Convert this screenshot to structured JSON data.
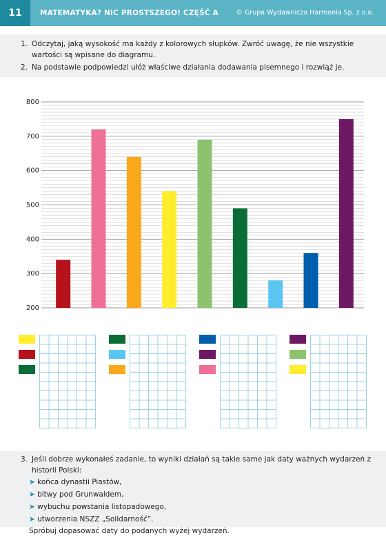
{
  "header": {
    "page_number": "11",
    "title": "MATEMATYKA? NIC PROSTSZEGO! CZĘŚĆ A",
    "copyright": "© Grupa Wydawnicza Harmonia Sp. z o.o."
  },
  "tasks": [
    {
      "number": "1.",
      "text": "Odczytaj, jaką wysokość ma każdy z kolorowych słupków. Zwróć uwagę, że nie wszystkie wartości są wpisane do diagramu."
    },
    {
      "number": "2.",
      "text": "Na podstawie podpowiedzi ułóż właściwe działania dodawania pisemnego i rozwiąż je."
    },
    {
      "number": "3.",
      "text": "Jeśli dobrze wykonałeś zadanie, to wyniki działań są takie same jak daty ważnych wydarzeń z historii Polski:",
      "items": [
        "końca dynastii Piastów,",
        "bitwy pod Grunwaldem,",
        "wybuchu powstania listopadowego,",
        "utworzenia NSZZ „Solidarność”."
      ],
      "closing": "Spróbuj dopasować daty do podanych wyżej wydarzeń."
    }
  ],
  "chart_data": {
    "type": "bar",
    "values": [
      340,
      720,
      640,
      540,
      690,
      490,
      280,
      360,
      750
    ],
    "colors": [
      "#b5121b",
      "#ef7096",
      "#f9a81a",
      "#ffed2e",
      "#8dc26f",
      "#0a6d38",
      "#5bc5f2",
      "#005eac",
      "#6d1863"
    ],
    "ylim": [
      200,
      800
    ],
    "yticks": [
      200,
      300,
      400,
      500,
      600,
      700,
      800
    ],
    "grid": true
  }
}
